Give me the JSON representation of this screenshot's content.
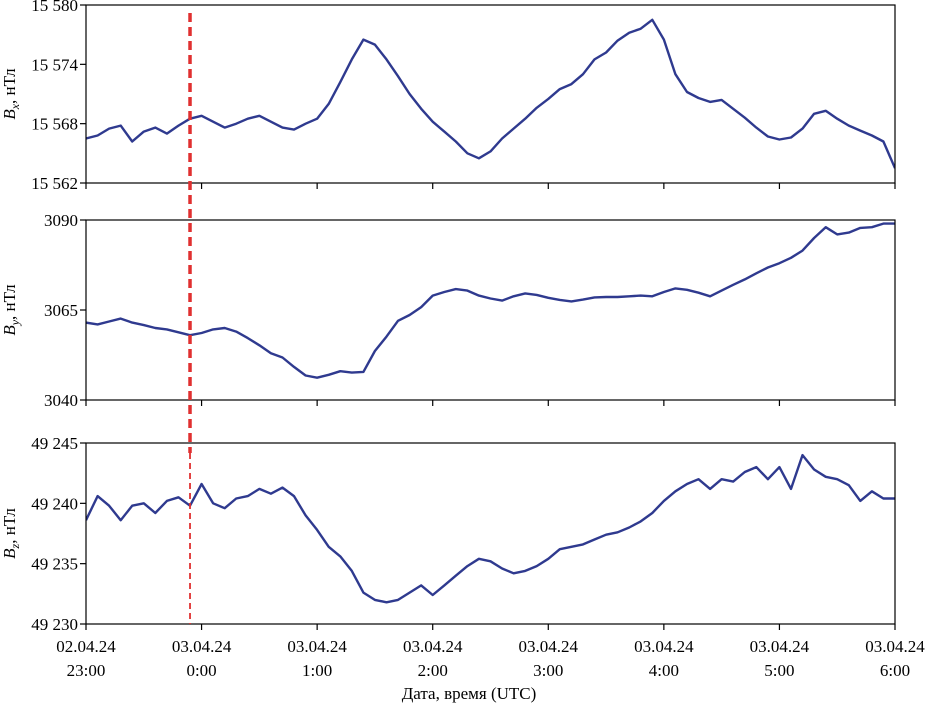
{
  "chart_data": {
    "type": "line",
    "xlabel": "Дата, время (UTC)",
    "x_ticks": [
      {
        "date": "02.04.24",
        "time": "23:00",
        "t": 0
      },
      {
        "date": "03.04.24",
        "time": "0:00",
        "t": 1
      },
      {
        "date": "03.04.24",
        "time": "1:00",
        "t": 2
      },
      {
        "date": "03.04.24",
        "time": "2:00",
        "t": 3
      },
      {
        "date": "03.04.24",
        "time": "3:00",
        "t": 4
      },
      {
        "date": "03.04.24",
        "time": "4:00",
        "t": 5
      },
      {
        "date": "03.04.24",
        "time": "5:00",
        "t": 6
      },
      {
        "date": "03.04.24",
        "time": "6:00",
        "t": 7
      }
    ],
    "xlim": [
      0,
      7
    ],
    "event_time": "23:54",
    "event_t": 0.9,
    "colors": {
      "series": "#2f3a8f",
      "event": "#e03030"
    },
    "panels": [
      {
        "id": "bx",
        "ylabel_base": "B",
        "ylabel_sub": "x",
        "ylabel_unit": ", нТл",
        "ylim": [
          15562,
          15580
        ],
        "yticks": [
          15562,
          15568,
          15574,
          15580
        ],
        "ytick_labels": [
          "15 562",
          "15 568",
          "15 574",
          "15 580"
        ],
        "series": {
          "t": [
            0,
            0.1,
            0.2,
            0.3,
            0.4,
            0.5,
            0.6,
            0.7,
            0.8,
            0.9,
            1.0,
            1.1,
            1.2,
            1.3,
            1.4,
            1.5,
            1.6,
            1.7,
            1.8,
            1.9,
            2.0,
            2.1,
            2.2,
            2.3,
            2.4,
            2.5,
            2.6,
            2.7,
            2.8,
            2.9,
            3.0,
            3.1,
            3.2,
            3.3,
            3.4,
            3.5,
            3.6,
            3.7,
            3.8,
            3.9,
            4.0,
            4.1,
            4.2,
            4.3,
            4.4,
            4.5,
            4.6,
            4.7,
            4.8,
            4.9,
            5.0,
            5.1,
            5.2,
            5.3,
            5.4,
            5.5,
            5.6,
            5.7,
            5.8,
            5.9,
            6.0,
            6.1,
            6.2,
            6.3,
            6.4,
            6.5,
            6.6,
            6.7,
            6.8,
            6.9,
            7.0
          ],
          "y": [
            15566.5,
            15566.8,
            15567.5,
            15567.8,
            15566.2,
            15567.2,
            15567.6,
            15567.0,
            15567.8,
            15568.5,
            15568.8,
            15568.2,
            15567.6,
            15568.0,
            15568.5,
            15568.8,
            15568.2,
            15567.6,
            15567.4,
            15568.0,
            15568.5,
            15570.0,
            15572.2,
            15574.5,
            15576.5,
            15576.0,
            15574.5,
            15572.8,
            15571.0,
            15569.5,
            15568.2,
            15567.2,
            15566.2,
            15565.0,
            15564.5,
            15565.2,
            15566.5,
            15567.5,
            15568.5,
            15569.6,
            15570.5,
            15571.5,
            15572.0,
            15573.0,
            15574.5,
            15575.2,
            15576.4,
            15577.2,
            15577.6,
            15578.5,
            15576.5,
            15573.0,
            15571.2,
            15570.6,
            15570.2,
            15570.4,
            15569.5,
            15568.6,
            15567.6,
            15566.7,
            15566.4,
            15566.6,
            15567.5,
            15569.0,
            15569.3,
            15568.5,
            15567.8,
            15567.3,
            15566.8,
            15566.2,
            15563.5
          ]
        }
      },
      {
        "id": "by",
        "ylabel_base": "B",
        "ylabel_sub": "y",
        "ylabel_unit": ", нТл",
        "ylim": [
          3040,
          3090
        ],
        "yticks": [
          3040,
          3065,
          3090
        ],
        "ytick_labels": [
          "3040",
          "3065",
          "3090"
        ],
        "series": {
          "t": [
            0,
            0.1,
            0.2,
            0.3,
            0.4,
            0.5,
            0.6,
            0.7,
            0.8,
            0.9,
            1.0,
            1.1,
            1.2,
            1.3,
            1.4,
            1.5,
            1.6,
            1.7,
            1.8,
            1.9,
            2.0,
            2.1,
            2.2,
            2.3,
            2.4,
            2.5,
            2.6,
            2.7,
            2.8,
            2.9,
            3.0,
            3.1,
            3.2,
            3.3,
            3.4,
            3.5,
            3.6,
            3.7,
            3.8,
            3.9,
            4.0,
            4.1,
            4.2,
            4.3,
            4.4,
            4.5,
            4.6,
            4.7,
            4.8,
            4.9,
            5.0,
            5.1,
            5.2,
            5.3,
            5.4,
            5.5,
            5.6,
            5.7,
            5.8,
            5.9,
            6.0,
            6.1,
            6.2,
            6.3,
            6.4,
            6.5,
            6.6,
            6.7,
            6.8,
            6.9,
            7.0
          ],
          "y": [
            3061.5,
            3061.0,
            3061.8,
            3062.6,
            3061.5,
            3060.8,
            3060.0,
            3059.6,
            3058.8,
            3058.0,
            3058.6,
            3059.6,
            3060.0,
            3059.0,
            3057.2,
            3055.2,
            3053.0,
            3051.8,
            3049.2,
            3046.8,
            3046.2,
            3047.0,
            3048.0,
            3047.6,
            3047.8,
            3053.6,
            3057.6,
            3062.0,
            3063.6,
            3065.8,
            3069.0,
            3070.0,
            3070.8,
            3070.4,
            3069.0,
            3068.2,
            3067.6,
            3068.8,
            3069.6,
            3069.2,
            3068.4,
            3067.8,
            3067.4,
            3067.9,
            3068.5,
            3068.6,
            3068.6,
            3068.8,
            3069.0,
            3068.8,
            3070.0,
            3071.0,
            3070.6,
            3069.8,
            3068.8,
            3070.4,
            3072.0,
            3073.5,
            3075.2,
            3076.8,
            3078.0,
            3079.5,
            3081.5,
            3085.0,
            3088.0,
            3086.0,
            3086.5,
            3087.8,
            3088.0,
            3089.0,
            3089.0
          ]
        }
      },
      {
        "id": "bz",
        "ylabel_base": "B",
        "ylabel_sub": "z",
        "ylabel_unit": ", нТл",
        "ylim": [
          49230,
          49245
        ],
        "yticks": [
          49230,
          49235,
          49240,
          49245
        ],
        "ytick_labels": [
          "49 230",
          "49 235",
          "49 240",
          "49 245"
        ],
        "series": {
          "t": [
            0,
            0.1,
            0.2,
            0.3,
            0.4,
            0.5,
            0.6,
            0.7,
            0.8,
            0.9,
            1.0,
            1.1,
            1.2,
            1.3,
            1.4,
            1.5,
            1.6,
            1.7,
            1.8,
            1.9,
            2.0,
            2.1,
            2.2,
            2.3,
            2.4,
            2.5,
            2.6,
            2.7,
            2.8,
            2.9,
            3.0,
            3.1,
            3.2,
            3.3,
            3.4,
            3.5,
            3.6,
            3.7,
            3.8,
            3.9,
            4.0,
            4.1,
            4.2,
            4.3,
            4.4,
            4.5,
            4.6,
            4.7,
            4.8,
            4.9,
            5.0,
            5.1,
            5.2,
            5.3,
            5.4,
            5.5,
            5.6,
            5.7,
            5.8,
            5.9,
            6.0,
            6.1,
            6.2,
            6.3,
            6.4,
            6.5,
            6.6,
            6.7,
            6.8,
            6.9,
            7.0
          ],
          "y": [
            49238.6,
            49240.6,
            49239.8,
            49238.6,
            49239.8,
            49240.0,
            49239.2,
            49240.2,
            49240.5,
            49239.8,
            49241.6,
            49240.0,
            49239.6,
            49240.4,
            49240.6,
            49241.2,
            49240.8,
            49241.3,
            49240.6,
            49239.0,
            49237.8,
            49236.4,
            49235.6,
            49234.4,
            49232.6,
            49232.0,
            49231.8,
            49232.0,
            49232.6,
            49233.2,
            49232.4,
            49233.2,
            49234.0,
            49234.8,
            49235.4,
            49235.2,
            49234.6,
            49234.2,
            49234.4,
            49234.8,
            49235.4,
            49236.2,
            49236.4,
            49236.6,
            49237.0,
            49237.4,
            49237.6,
            49238.0,
            49238.5,
            49239.2,
            49240.2,
            49241.0,
            49241.6,
            49242.0,
            49241.2,
            49242.0,
            49241.8,
            49242.6,
            49243.0,
            49242.0,
            49243.0,
            49241.2,
            49244.0,
            49242.8,
            49242.2,
            49242.0,
            49241.5,
            49240.2,
            49241.0,
            49240.4,
            49240.4
          ]
        }
      }
    ]
  }
}
